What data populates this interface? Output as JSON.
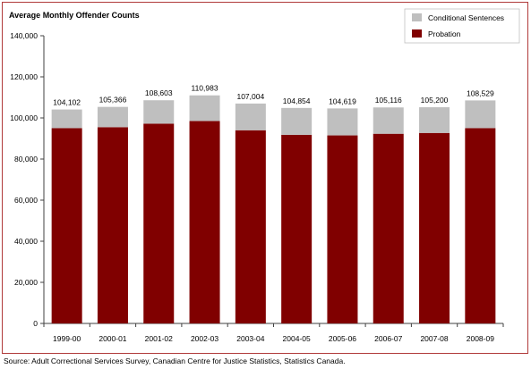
{
  "colors": {
    "probation": "#800000",
    "conditional": "#bfbfbf",
    "axis": "#404040",
    "frame": "#b03a3a"
  },
  "source_text": "Source:  Adult Correctional Services Survey, Canadian Centre for Justice Statistics, Statistics Canada.",
  "chart_data": {
    "type": "bar",
    "stacked": true,
    "title": "Average Monthly Offender Counts",
    "xlabel": "",
    "ylabel": "",
    "ylim": [
      0,
      140000
    ],
    "yticks": [
      "0",
      "20,000",
      "40,000",
      "60,000",
      "80,000",
      "100,000",
      "120,000",
      "140,000"
    ],
    "ytick_values": [
      0,
      20000,
      40000,
      60000,
      80000,
      100000,
      120000,
      140000
    ],
    "grid": false,
    "legend_position": "top-right",
    "categories": [
      "1999-00",
      "2000-01",
      "2001-02",
      "2002-03",
      "2003-04",
      "2004-05",
      "2005-06",
      "2006-07",
      "2007-08",
      "2008-09"
    ],
    "series": [
      {
        "name": "Probation",
        "color": "#800000",
        "values": [
          95000,
          95500,
          97200,
          98500,
          94000,
          91800,
          91500,
          92300,
          92700,
          95000
        ]
      },
      {
        "name": "Conditional Sentences",
        "color": "#bfbfbf",
        "values": [
          9102,
          9866,
          11403,
          12483,
          13004,
          13054,
          13119,
          12816,
          12500,
          13529
        ]
      }
    ],
    "totals": [
      104102,
      105366,
      108603,
      110983,
      107004,
      104854,
      104619,
      105116,
      105200,
      108529
    ],
    "total_labels": [
      "104,102",
      "105,366",
      "108,603",
      "110,983",
      "107,004",
      "104,854",
      "104,619",
      "105,116",
      "105,200",
      "108,529"
    ],
    "legend": [
      {
        "label": "Conditional Sentences",
        "color": "#bfbfbf"
      },
      {
        "label": "Probation",
        "color": "#800000"
      }
    ]
  }
}
